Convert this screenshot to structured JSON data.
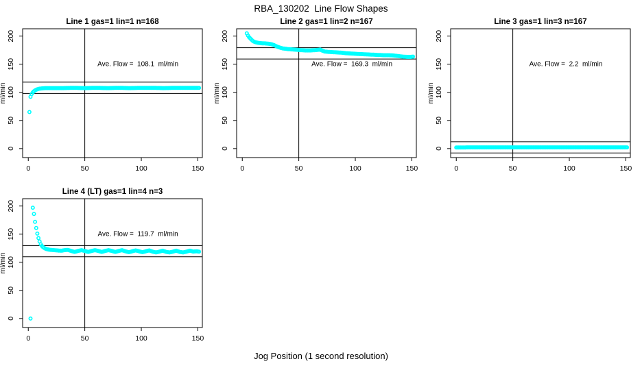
{
  "title": "RBA_130202  Line Flow Shapes",
  "xlabel": "Jog Position (1 second resolution)",
  "colors": {
    "points": "#00FFFF",
    "axis": "#000000",
    "background": "#FFFFFF"
  },
  "axes": {
    "ylabel": "ml/min",
    "x_ticks": [
      0,
      50,
      100,
      150
    ],
    "y_ticks": [
      0,
      50,
      100,
      150,
      200
    ],
    "xlim_ext": [
      -5,
      154
    ],
    "ylim_ext": [
      -16,
      213
    ],
    "vline_x": 50
  },
  "chart_data": [
    {
      "type": "scatter",
      "title": "Line 1 gas=1 lin=1 n=168",
      "n": 168,
      "ave_flow": 108.1,
      "ave_flow_label": "Ave. Flow =  108.1  ml/min",
      "hlines": [
        118.1,
        98.1
      ],
      "x_start": 1,
      "x_end": 151,
      "n_dots": 150,
      "points": [
        [
          1,
          65
        ],
        [
          2,
          92
        ],
        [
          3,
          97
        ],
        [
          4,
          100
        ],
        [
          5,
          102
        ],
        [
          6,
          103.5
        ],
        [
          7,
          104.5
        ],
        [
          8,
          105.5
        ],
        [
          9,
          106
        ],
        [
          10,
          106.5
        ],
        [
          12,
          107
        ],
        [
          15,
          107.5
        ],
        [
          20,
          107.5
        ],
        [
          30,
          107.5
        ],
        [
          40,
          108
        ],
        [
          50,
          107.5
        ],
        [
          60,
          108
        ],
        [
          70,
          107.5
        ],
        [
          80,
          108
        ],
        [
          90,
          107.5
        ],
        [
          100,
          108
        ],
        [
          110,
          108
        ],
        [
          120,
          107.5
        ],
        [
          130,
          108
        ],
        [
          140,
          108
        ],
        [
          151,
          108
        ]
      ],
      "extra_points": []
    },
    {
      "type": "scatter",
      "title": "Line 2 gas=1 lin=2 n=167",
      "n": 167,
      "ave_flow": 169.3,
      "ave_flow_label": "Ave. Flow =  169.3  ml/min",
      "hlines": [
        179.3,
        159.3
      ],
      "x_start": 4,
      "x_end": 151,
      "n_dots": 148,
      "points": [
        [
          4,
          205
        ],
        [
          5,
          201
        ],
        [
          6,
          198
        ],
        [
          7,
          196
        ],
        [
          8,
          194
        ],
        [
          9,
          192
        ],
        [
          10,
          190.5
        ],
        [
          11,
          189.5
        ],
        [
          12,
          189
        ],
        [
          14,
          188
        ],
        [
          16,
          187.5
        ],
        [
          18,
          187
        ],
        [
          20,
          187
        ],
        [
          23,
          186.5
        ],
        [
          26,
          185.5
        ],
        [
          28,
          184
        ],
        [
          30,
          182
        ],
        [
          32,
          180.5
        ],
        [
          34,
          179
        ],
        [
          36,
          178
        ],
        [
          38,
          177.5
        ],
        [
          40,
          177
        ],
        [
          43,
          176.5
        ],
        [
          46,
          176
        ],
        [
          49,
          175.5
        ],
        [
          52,
          175
        ],
        [
          56,
          174.5
        ],
        [
          60,
          174.5
        ],
        [
          64,
          175
        ],
        [
          67,
          175.5
        ],
        [
          69,
          176
        ],
        [
          71,
          174
        ],
        [
          73,
          172.5
        ],
        [
          76,
          172
        ],
        [
          80,
          171.5
        ],
        [
          84,
          171
        ],
        [
          88,
          170.5
        ],
        [
          92,
          169.5
        ],
        [
          96,
          169
        ],
        [
          100,
          168.5
        ],
        [
          105,
          168
        ],
        [
          110,
          167.5
        ],
        [
          115,
          167
        ],
        [
          120,
          166.5
        ],
        [
          125,
          166
        ],
        [
          130,
          166
        ],
        [
          134,
          165.5
        ],
        [
          138,
          164.5
        ],
        [
          142,
          163.5
        ],
        [
          146,
          163
        ],
        [
          149,
          163
        ],
        [
          151,
          163.5
        ]
      ],
      "extra_points": []
    },
    {
      "type": "scatter",
      "title": "Line 3 gas=1 lin=3 n=167",
      "n": 167,
      "ave_flow": 2.2,
      "ave_flow_label": "Ave. Flow =  2.2  ml/min",
      "hlines": [
        12.2,
        -7.8
      ],
      "x_start": 0,
      "x_end": 151,
      "n_dots": 152,
      "points": [
        [
          0,
          2
        ],
        [
          20,
          2.2
        ],
        [
          40,
          2.2
        ],
        [
          60,
          2.2
        ],
        [
          80,
          2.2
        ],
        [
          100,
          2.2
        ],
        [
          120,
          2.2
        ],
        [
          140,
          2.2
        ],
        [
          151,
          2.2
        ]
      ],
      "extra_points": []
    },
    {
      "type": "scatter",
      "title": "Line 4 (LT) gas=1 lin=4 n=3",
      "n": 3,
      "ave_flow": 119.7,
      "ave_flow_label": "Ave. Flow =  119.7  ml/min",
      "hlines": [
        129.7,
        109.7
      ],
      "x_start": 4,
      "x_end": 151,
      "n_dots": 148,
      "points": [
        [
          4,
          197
        ],
        [
          5,
          186
        ],
        [
          6,
          172
        ],
        [
          7,
          161
        ],
        [
          8,
          151
        ],
        [
          9,
          143
        ],
        [
          10,
          137
        ],
        [
          11,
          132
        ],
        [
          12,
          129
        ],
        [
          13,
          127
        ],
        [
          14,
          125.5
        ],
        [
          15,
          124.5
        ],
        [
          16,
          123.5
        ],
        [
          18,
          122.5
        ],
        [
          20,
          122
        ],
        [
          23,
          121.5
        ],
        [
          26,
          121
        ],
        [
          29,
          120.5
        ],
        [
          32,
          121.5
        ],
        [
          35,
          122
        ],
        [
          38,
          120
        ],
        [
          41,
          118.5
        ],
        [
          44,
          120
        ],
        [
          47,
          121.5
        ],
        [
          50,
          120
        ],
        [
          53,
          118.5
        ],
        [
          56,
          120
        ],
        [
          59,
          121.5
        ],
        [
          62,
          120
        ],
        [
          65,
          118.5
        ],
        [
          68,
          120
        ],
        [
          71,
          121.5
        ],
        [
          74,
          120
        ],
        [
          77,
          118.5
        ],
        [
          80,
          120
        ],
        [
          83,
          121.5
        ],
        [
          86,
          119.5
        ],
        [
          89,
          118
        ],
        [
          92,
          119.5
        ],
        [
          95,
          121
        ],
        [
          98,
          119.5
        ],
        [
          101,
          118
        ],
        [
          104,
          119.5
        ],
        [
          107,
          121
        ],
        [
          110,
          119
        ],
        [
          113,
          117.5
        ],
        [
          116,
          119
        ],
        [
          119,
          120.5
        ],
        [
          122,
          118.5
        ],
        [
          125,
          117.5
        ],
        [
          128,
          119
        ],
        [
          131,
          120.5
        ],
        [
          134,
          118.5
        ],
        [
          137,
          117.5
        ],
        [
          140,
          119
        ],
        [
          143,
          120.5
        ],
        [
          146,
          119
        ],
        [
          149,
          119.5
        ],
        [
          151,
          119
        ]
      ],
      "extra_points": [
        [
          2,
          0
        ]
      ]
    }
  ]
}
